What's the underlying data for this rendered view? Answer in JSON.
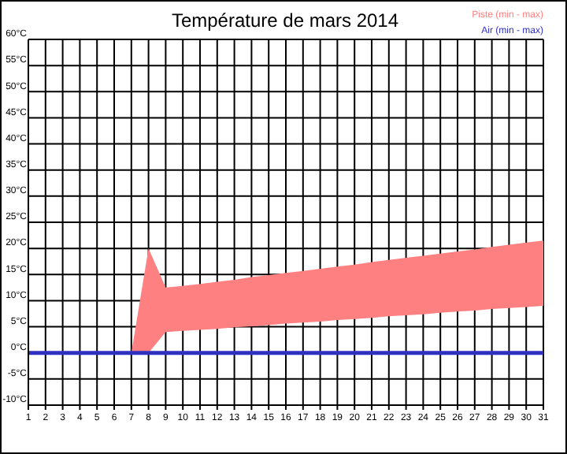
{
  "chart_data": {
    "type": "area",
    "title": "Température de mars 2014",
    "x": [
      1,
      2,
      3,
      4,
      5,
      6,
      7,
      8,
      9,
      10,
      11,
      12,
      13,
      14,
      15,
      16,
      17,
      18,
      19,
      20,
      21,
      22,
      23,
      24,
      25,
      26,
      27,
      28,
      29,
      30,
      31
    ],
    "series": [
      {
        "name": "Piste (min - max)",
        "color": "#ff8080",
        "values": [
          null,
          null,
          null,
          null,
          null,
          null,
          null,
          null,
          null,
          null,
          null,
          null,
          null,
          null,
          null,
          null,
          null,
          null,
          null,
          null,
          null,
          null,
          null,
          null,
          null,
          null,
          null,
          null,
          null,
          null,
          null
        ],
        "upper": [
          0,
          0,
          0,
          0,
          0,
          0,
          0,
          20,
          12.5,
          12.8,
          13.2,
          13.6,
          14.0,
          14.5,
          14.9,
          15.3,
          15.7,
          16.1,
          16.5,
          16.9,
          17.4,
          17.8,
          18.2,
          18.6,
          19.0,
          19.4,
          19.8,
          20.3,
          20.7,
          21.1,
          21.5
        ],
        "lower": [
          0,
          0,
          0,
          0,
          0,
          0,
          0,
          0,
          4,
          4.2,
          4.4,
          4.6,
          4.9,
          5.1,
          5.3,
          5.6,
          5.8,
          6.0,
          6.3,
          6.5,
          6.7,
          7.0,
          7.2,
          7.4,
          7.7,
          7.9,
          8.1,
          8.4,
          8.6,
          8.8,
          9.0
        ]
      },
      {
        "name": "Air (min - max)",
        "type": "line",
        "color": "#3030c0",
        "values": [
          0,
          0,
          0,
          0,
          0,
          0,
          0,
          0,
          0,
          0,
          0,
          0,
          0,
          0,
          0,
          0,
          0,
          0,
          0,
          0,
          0,
          0,
          0,
          0,
          0,
          0,
          0,
          0,
          0,
          0,
          0
        ]
      }
    ],
    "xlim": [
      1,
      31
    ],
    "xticks": [
      1,
      2,
      3,
      4,
      5,
      6,
      7,
      8,
      9,
      10,
      11,
      12,
      13,
      14,
      15,
      16,
      17,
      18,
      19,
      20,
      21,
      22,
      23,
      24,
      25,
      26,
      27,
      28,
      29,
      30,
      31
    ],
    "ylim": [
      -10,
      60
    ],
    "yticks": [
      {
        "value": -10,
        "label": "-10°C"
      },
      {
        "value": -5,
        "label": "-5°C"
      },
      {
        "value": 0,
        "label": "0°C"
      },
      {
        "value": 5,
        "label": "5°C"
      },
      {
        "value": 10,
        "label": "10°C"
      },
      {
        "value": 15,
        "label": "15°C"
      },
      {
        "value": 20,
        "label": "20°C"
      },
      {
        "value": 25,
        "label": "25°C"
      },
      {
        "value": 30,
        "label": "30°C"
      },
      {
        "value": 35,
        "label": "35°C"
      },
      {
        "value": 40,
        "label": "40°C"
      },
      {
        "value": 45,
        "label": "45°C"
      },
      {
        "value": 50,
        "label": "50°C"
      },
      {
        "value": 55,
        "label": "55°C"
      },
      {
        "value": 60,
        "label": "60°C"
      }
    ],
    "grid": true,
    "legend": "top right"
  }
}
